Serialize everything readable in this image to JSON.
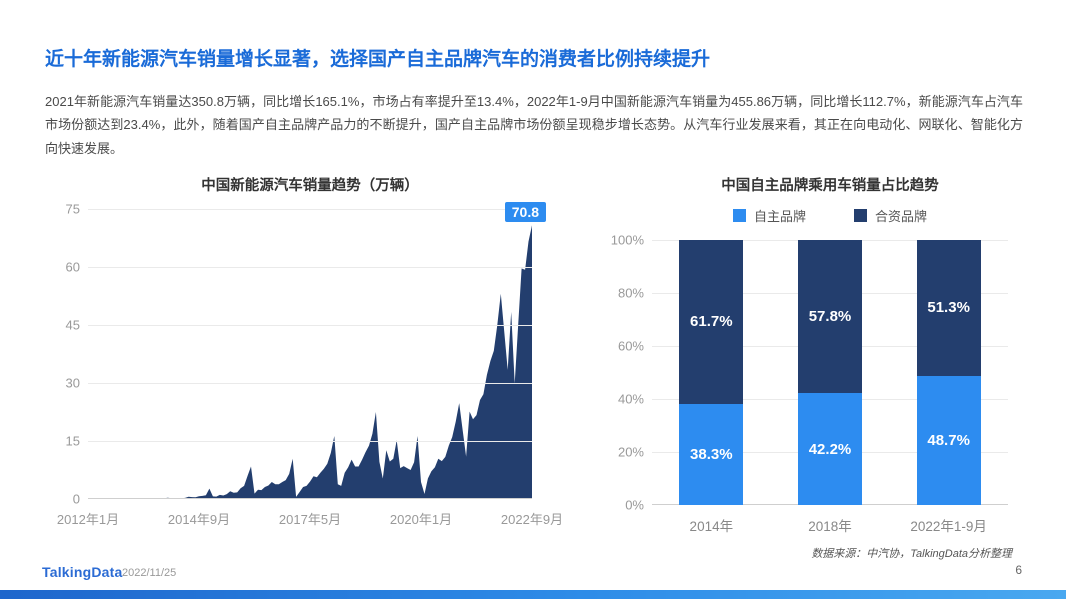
{
  "page": {
    "title": "近十年新能源汽车销量增长显著，选择国产自主品牌汽车的消费者比例持续提升",
    "paragraph": "2021年新能源汽车销量达350.8万辆，同比增长165.1%，市场占有率提升至13.4%，2022年1-9月中国新能源汽车销量为455.86万辆，同比增长112.7%，新能源汽车占汽车市场份额达到23.4%，此外，随着国产自主品牌产品力的不断提升，国产自主品牌市场份额呈现稳步增长态势。从汽车行业发展来看，其正在向电动化、网联化、智能化方向快速发展。",
    "source_note": "数据来源：中汽协，TalkingData分析整理",
    "footer": {
      "logo": "TalkingData",
      "date": "2022/11/25",
      "page_number": "6"
    }
  },
  "colors": {
    "title_blue": "#1a6bd8",
    "series_light_blue": "#2d8cf0",
    "series_dark_navy": "#233e6e",
    "grid": "#eaeaea",
    "axis_text": "#999999"
  },
  "chart_data": [
    {
      "type": "area",
      "title": "中国新能源汽车销量趋势（万辆）",
      "color": "#233e6e",
      "ylim": [
        0,
        75
      ],
      "y_ticks": [
        0,
        15,
        30,
        45,
        60,
        75
      ],
      "x_tick_labels": [
        "2012年1月",
        "2014年9月",
        "2017年5月",
        "2020年1月",
        "2022年9月"
      ],
      "x_range": "2012-01 至 2022-09（月度）",
      "annotation": {
        "label": "70.8",
        "x": "2022年9月",
        "y": 70.8
      },
      "values": [
        0.06,
        0.07,
        0.08,
        0.09,
        0.1,
        0.1,
        0.1,
        0.1,
        0.11,
        0.12,
        0.15,
        0.2,
        0.08,
        0.09,
        0.1,
        0.12,
        0.13,
        0.13,
        0.14,
        0.14,
        0.15,
        0.16,
        0.2,
        0.32,
        0.18,
        0.12,
        0.15,
        0.2,
        0.28,
        0.6,
        0.5,
        0.45,
        0.7,
        0.8,
        0.95,
        2.7,
        0.66,
        0.63,
        1.05,
        0.9,
        1.26,
        2.0,
        1.6,
        1.7,
        2.8,
        3.4,
        6.0,
        8.4,
        1.4,
        2.4,
        2.3,
        3.1,
        3.5,
        4.4,
        3.8,
        3.8,
        4.4,
        4.9,
        6.5,
        10.4,
        0.54,
        1.8,
        3.1,
        3.4,
        4.5,
        5.9,
        5.6,
        6.8,
        7.8,
        9.1,
        11.9,
        16.3,
        3.8,
        3.4,
        6.8,
        8.2,
        10.2,
        8.4,
        8.4,
        10.1,
        12.1,
        13.8,
        16.9,
        22.5,
        9.6,
        5.3,
        12.6,
        9.7,
        10.4,
        15.2,
        8.0,
        8.5,
        8.0,
        7.5,
        9.5,
        16.3,
        4.4,
        1.3,
        5.3,
        7.2,
        8.2,
        10.4,
        9.8,
        10.9,
        13.8,
        16.0,
        20.0,
        24.8,
        17.9,
        11.0,
        22.6,
        20.6,
        21.7,
        25.6,
        27.1,
        32.1,
        35.7,
        38.3,
        45.0,
        53.1,
        43.1,
        33.4,
        48.4,
        29.9,
        44.7,
        59.6,
        59.3,
        66.6,
        70.8
      ]
    },
    {
      "type": "stacked-bar",
      "title": "中国自主品牌乘用车销量占比趋势",
      "categories": [
        "2014年",
        "2018年",
        "2022年1-9月"
      ],
      "series": [
        {
          "name": "自主品牌",
          "color": "#2d8cf0",
          "values": [
            38.3,
            42.2,
            48.7
          ],
          "labels": [
            "38.3%",
            "42.2%",
            "48.7%"
          ]
        },
        {
          "name": "合资品牌",
          "color": "#233e6e",
          "values": [
            61.7,
            57.8,
            51.3
          ],
          "labels": [
            "61.7%",
            "57.8%",
            "51.3%"
          ]
        }
      ],
      "ylim": [
        0,
        100
      ],
      "y_ticks": [
        "0%",
        "20%",
        "40%",
        "60%",
        "80%",
        "100%"
      ],
      "legend_position": "top"
    }
  ]
}
